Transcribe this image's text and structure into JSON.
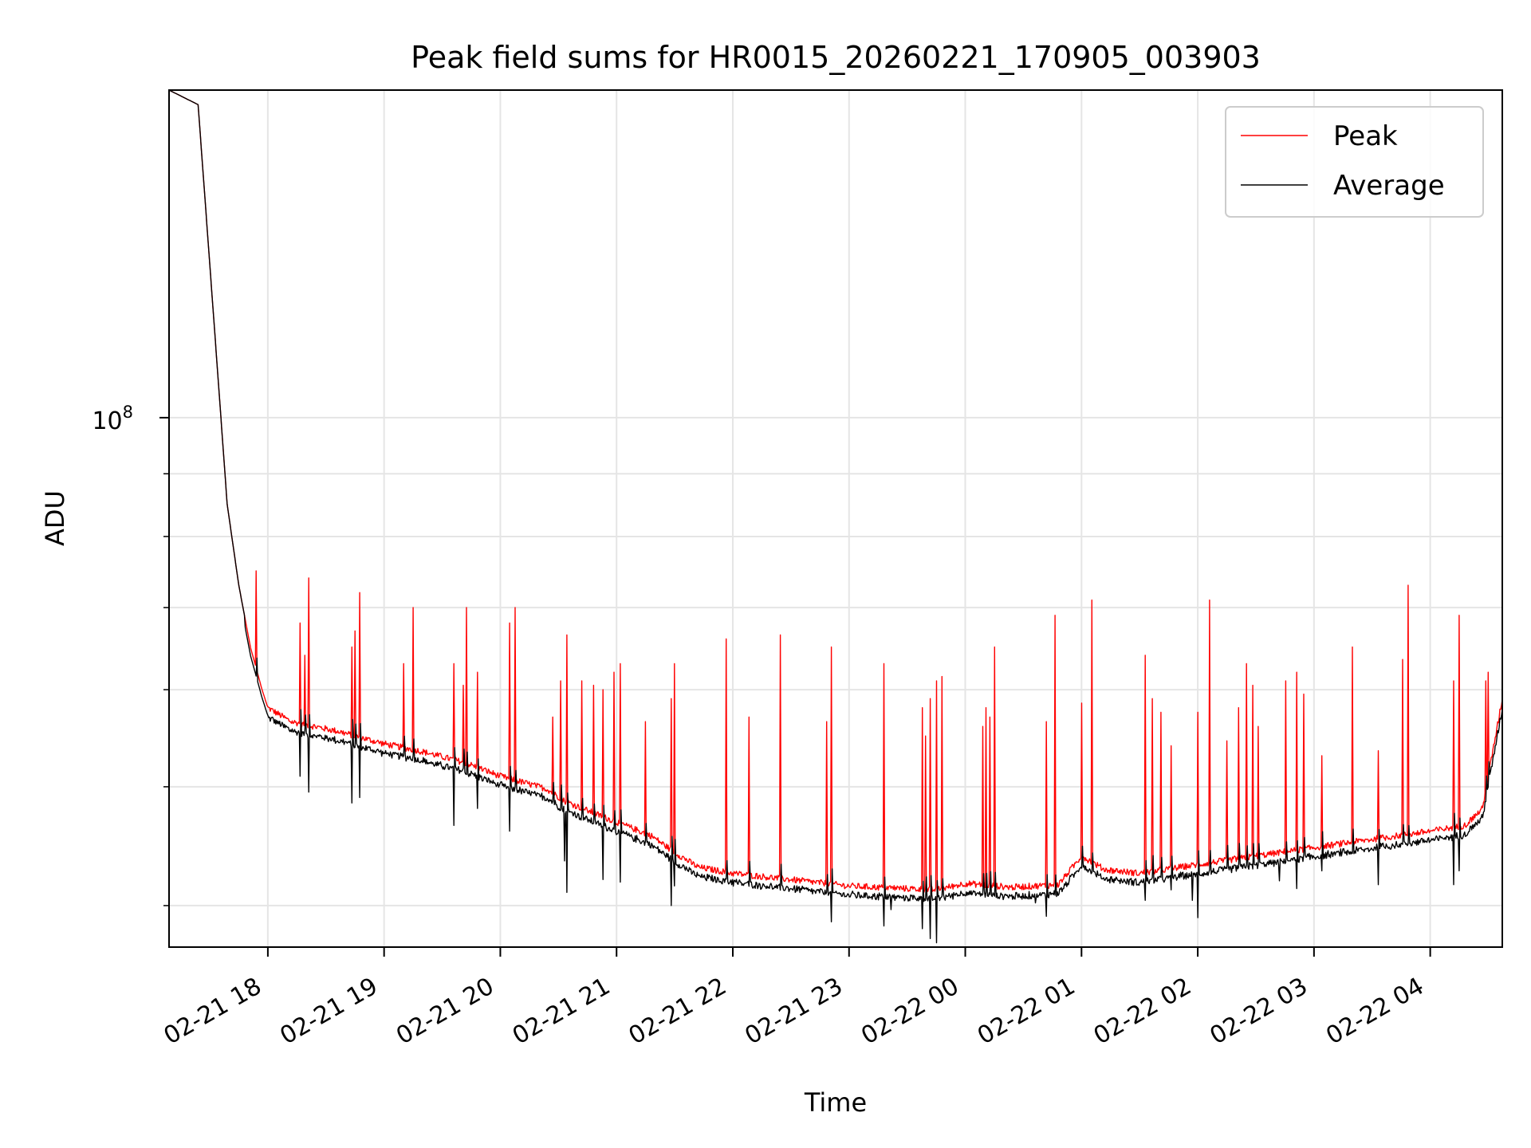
{
  "chart_data": {
    "type": "line",
    "title": "Peak field sums for HR0015_20260221_170905_003903",
    "xlabel": "Time",
    "ylabel": "ADU",
    "yscale": "log",
    "ylim": [
      37000000,
      185000000
    ],
    "xlim_hours": [
      17.15,
      4.62
    ],
    "x_tick_labels": [
      "02-21 18",
      "02-21 19",
      "02-21 20",
      "02-21 21",
      "02-21 22",
      "02-21 23",
      "02-22 00",
      "02-22 01",
      "02-22 02",
      "02-22 03",
      "02-22 04"
    ],
    "x_tick_hours": [
      18,
      19,
      20,
      21,
      22,
      23,
      24,
      25,
      26,
      27,
      28
    ],
    "y_major_ticks": [
      {
        "value": 100000000,
        "base": "10",
        "exp": "8"
      }
    ],
    "grid": true,
    "legend": {
      "position": "top-right",
      "entries": [
        "Peak",
        "Average"
      ]
    },
    "series": [
      {
        "name": "Peak",
        "color": "#ff0000",
        "baseline_hours": [
          17.15,
          17.4,
          17.55,
          17.65,
          17.75,
          17.85,
          17.95,
          18.0,
          18.2,
          18.6,
          19.0,
          19.3,
          19.7,
          20.0,
          20.4,
          20.55,
          20.8,
          21.0,
          21.3,
          21.5,
          21.7,
          22.0,
          22.5,
          23.0,
          23.5,
          23.75,
          24.0,
          24.4,
          24.8,
          25.0,
          25.2,
          25.5,
          26.0,
          26.5,
          27.0,
          27.5,
          28.0,
          28.3,
          28.45,
          28.62
        ],
        "baseline_values": [
          185000000,
          180000000,
          115000000,
          85000000,
          73000000,
          65000000,
          60000000,
          58000000,
          56500000,
          55500000,
          54200000,
          53500000,
          52300000,
          51000000,
          49800000,
          48700000,
          47600000,
          46800000,
          45600000,
          44200000,
          43000000,
          42500000,
          42000000,
          41500000,
          41300000,
          41200000,
          41700000,
          41400000,
          41600000,
          43900000,
          42800000,
          42500000,
          43200000,
          43900000,
          44600000,
          45300000,
          46000000,
          46500000,
          48000000,
          59000000
        ],
        "spike_hours": [
          17.9,
          18.28,
          18.32,
          18.35,
          18.72,
          18.75,
          18.79,
          19.17,
          19.25,
          19.6,
          19.68,
          19.71,
          19.8,
          20.08,
          20.13,
          20.45,
          20.52,
          20.57,
          20.7,
          20.8,
          20.88,
          20.98,
          21.03,
          21.25,
          21.47,
          21.5,
          21.94,
          22.14,
          22.41,
          22.81,
          22.85,
          23.3,
          23.63,
          23.66,
          23.7,
          23.75,
          23.8,
          24.15,
          24.18,
          24.21,
          24.25,
          24.7,
          24.77,
          25.0,
          25.09,
          25.55,
          25.61,
          25.68,
          25.77,
          26.0,
          26.1,
          26.25,
          26.35,
          26.42,
          26.47,
          26.52,
          26.76,
          26.85,
          26.91,
          27.07,
          27.33,
          27.55,
          27.76,
          27.81,
          28.2,
          28.25,
          28.48,
          28.5
        ],
        "spike_values": [
          75000000,
          68000000,
          64000000,
          74000000,
          65000000,
          67000000,
          72000000,
          63000000,
          70000000,
          63000000,
          60500000,
          70000000,
          62000000,
          68000000,
          70000000,
          57000000,
          61000000,
          66500000,
          61000000,
          60500000,
          60000000,
          62000000,
          63000000,
          56500000,
          59000000,
          63000000,
          66000000,
          57000000,
          66500000,
          56500000,
          65000000,
          63000000,
          58000000,
          55000000,
          59000000,
          61000000,
          61500000,
          56000000,
          58000000,
          57000000,
          65000000,
          56500000,
          69000000,
          58500000,
          71000000,
          64000000,
          59000000,
          57500000,
          54000000,
          57500000,
          71000000,
          54500000,
          58000000,
          63000000,
          60500000,
          56000000,
          61000000,
          62000000,
          59500000,
          53000000,
          65000000,
          53500000,
          63500000,
          73000000,
          61000000,
          69000000,
          61000000,
          62000000
        ]
      },
      {
        "name": "Average",
        "color": "#000000",
        "baseline_offset_ratio": 0.985,
        "dip_hours": [
          18.28,
          18.35,
          18.72,
          18.79,
          19.6,
          19.8,
          20.08,
          20.55,
          20.57,
          20.88,
          21.03,
          21.47,
          21.5,
          22.0,
          22.85,
          23.3,
          23.36,
          23.63,
          23.7,
          23.75,
          24.6,
          24.7,
          25.55,
          25.77,
          25.95,
          26.0,
          26.7,
          26.85,
          27.07,
          27.55,
          28.2,
          28.25
        ],
        "dip_values": [
          51000000,
          49500000,
          48500000,
          49000000,
          46500000,
          48000000,
          46000000,
          43500000,
          41000000,
          42000000,
          41800000,
          40000000,
          41500000,
          42000000,
          38800000,
          38500000,
          39700000,
          38300000,
          37600000,
          37300000,
          40200000,
          39200000,
          40400000,
          41200000,
          40400000,
          39100000,
          41900000,
          41300000,
          42700000,
          41600000,
          41600000,
          42700000
        ]
      }
    ]
  }
}
